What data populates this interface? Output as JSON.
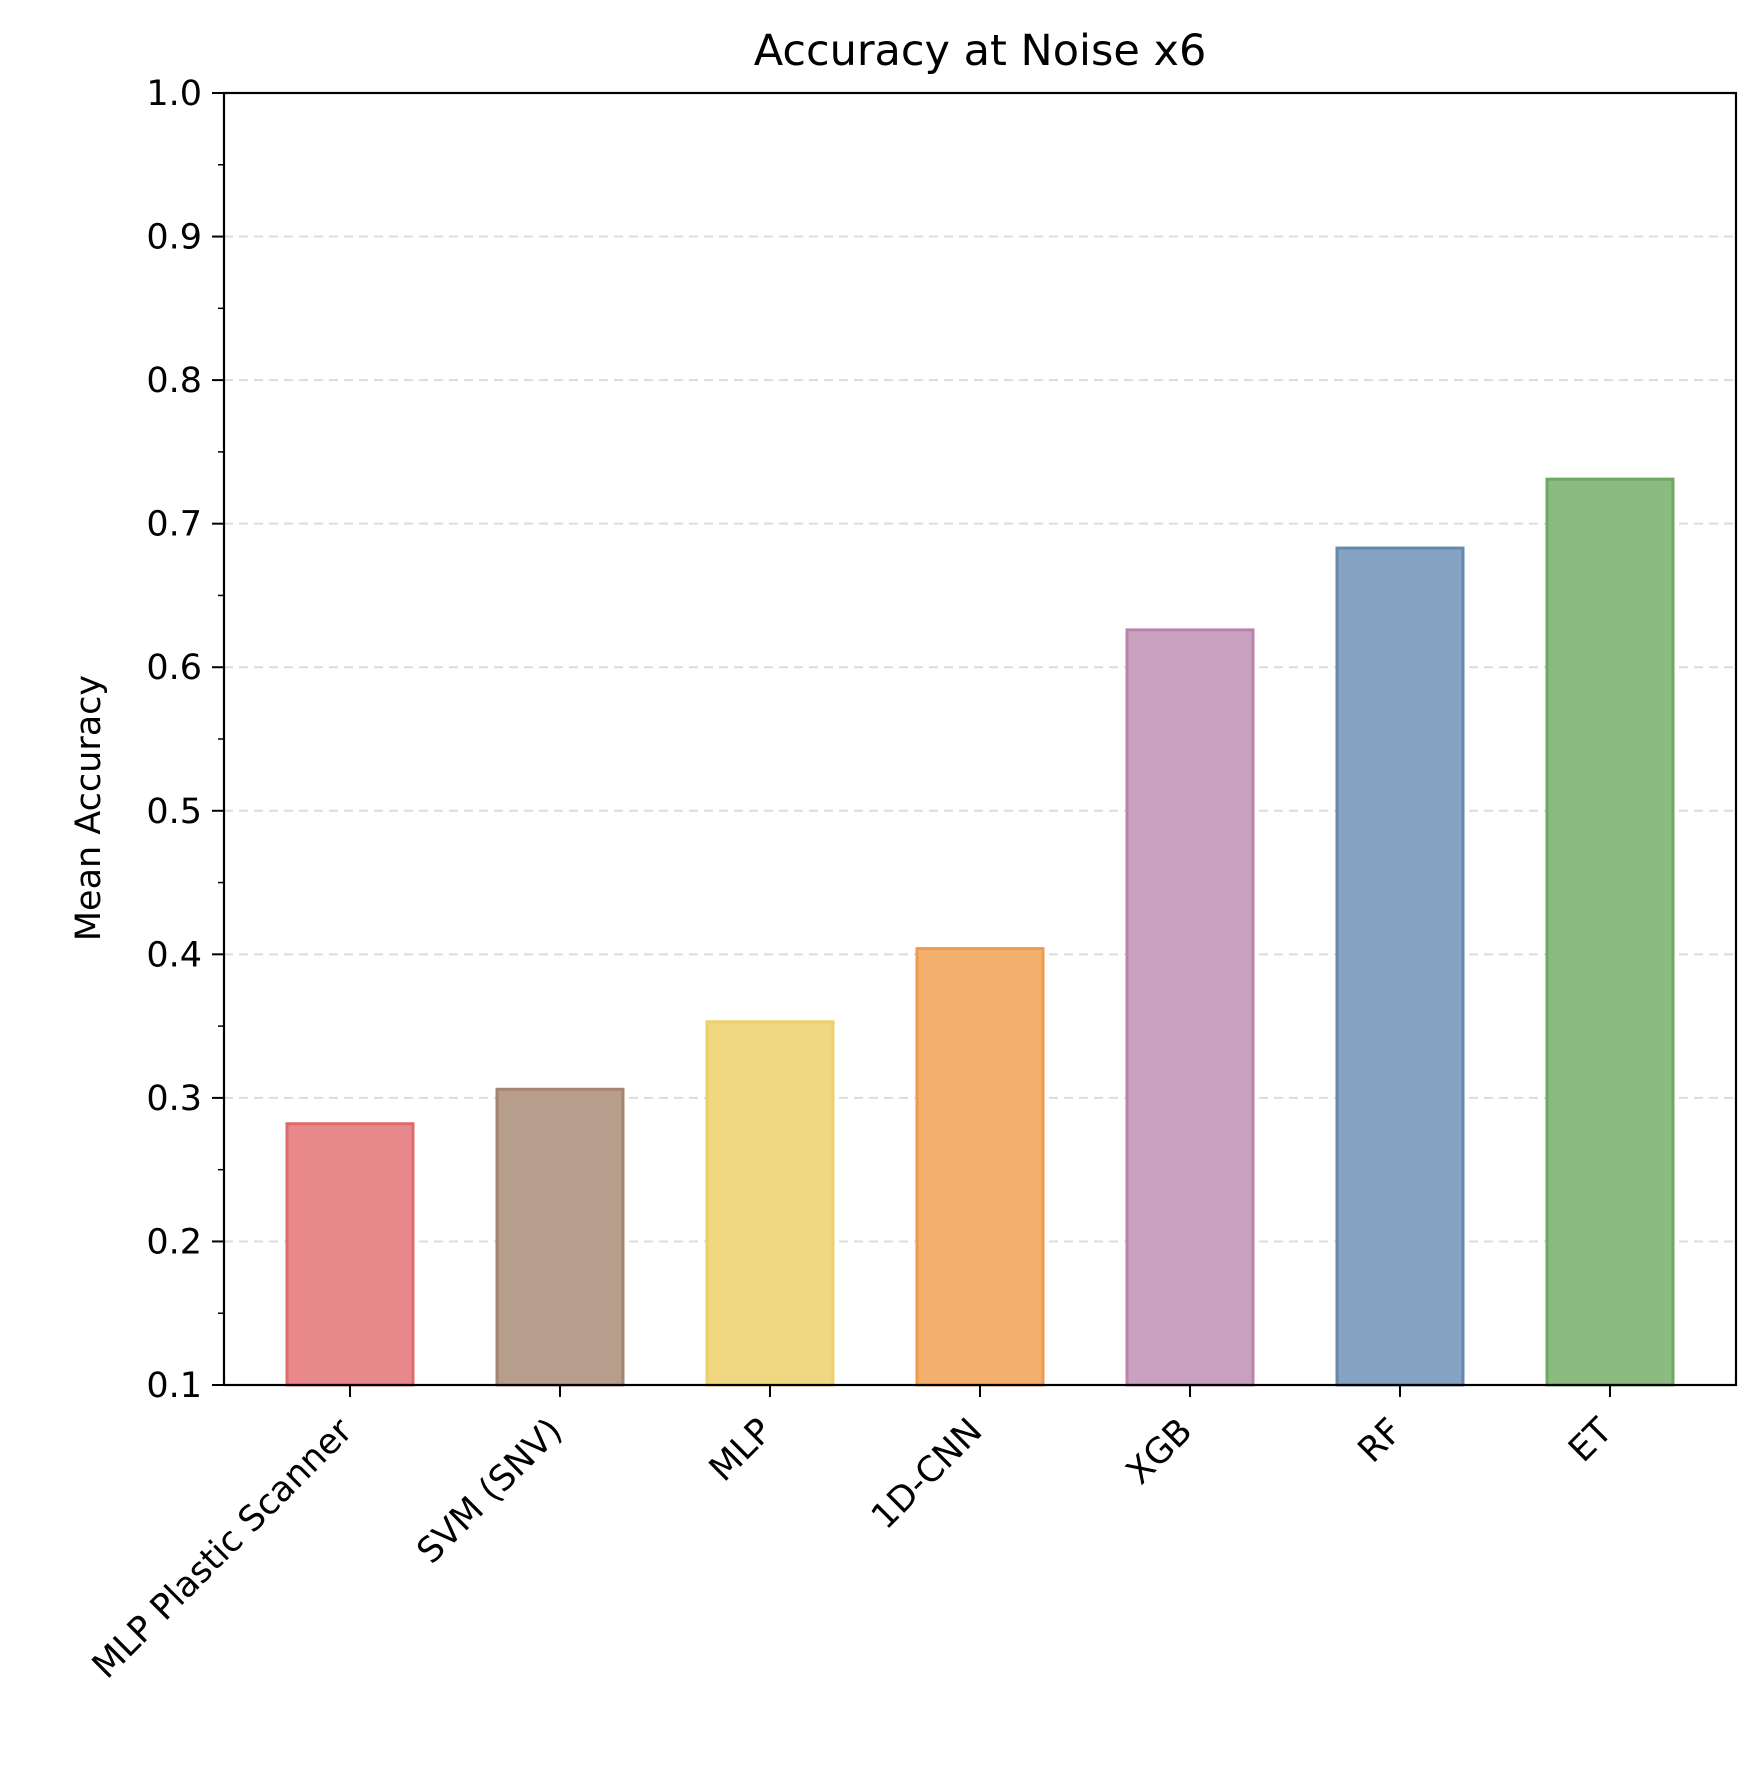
{
  "chart_data": {
    "type": "bar",
    "title": "Accuracy at Noise x6",
    "xlabel": "",
    "ylabel": "Mean Accuracy",
    "ylim": [
      0.1,
      1.0
    ],
    "y_ticks": [
      "0.1",
      "0.2",
      "0.3",
      "0.4",
      "0.5",
      "0.6",
      "0.7",
      "0.8",
      "0.9",
      "1.0"
    ],
    "grid": "y-dashed",
    "categories": [
      "MLP Plastic Scanner",
      "SVM (SNV)",
      "MLP",
      "1D-CNN",
      "XGB",
      "RF",
      "ET"
    ],
    "values": [
      0.282,
      0.306,
      0.353,
      0.404,
      0.626,
      0.683,
      0.731
    ],
    "colors": [
      "#e8888a",
      "#b79d8b",
      "#f1d880",
      "#f3af6d",
      "#c7a1be",
      "#85a3c2",
      "#8bbb81"
    ],
    "edge_colors": [
      "#dd6a6d",
      "#a58572",
      "#ecd068",
      "#ee9a4c",
      "#b884ac",
      "#6688ad",
      "#6fa862"
    ]
  }
}
